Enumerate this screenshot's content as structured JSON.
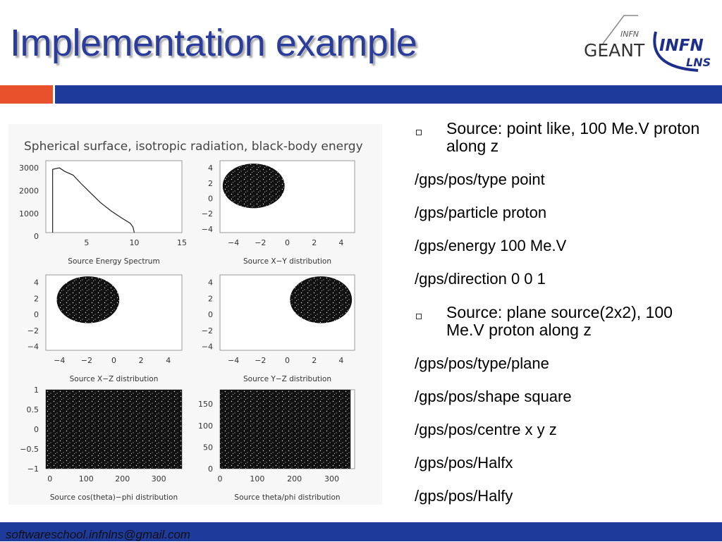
{
  "header": {
    "title": "Implementation example"
  },
  "logos": {
    "infn_small": "INFN",
    "geant": "GEANT",
    "infn": "INFN",
    "lns": "LNS"
  },
  "figure": {
    "title": "Spherical surface, isotropic radiation, black-body energy",
    "panels": [
      {
        "caption": "Source Energy Spectrum",
        "yticks": [
          "3000",
          "2000",
          "1000",
          "0"
        ],
        "xticks": [
          "5",
          "10",
          "15"
        ]
      },
      {
        "caption": "Source X−Y distribution",
        "yticks": [
          "4",
          "2",
          "0",
          "−2",
          "−4"
        ],
        "xticks": [
          "−4",
          "−2",
          "0",
          "2",
          "4"
        ]
      },
      {
        "caption": "Source X−Z distribution",
        "yticks": [
          "4",
          "2",
          "0",
          "−2",
          "−4"
        ],
        "xticks": [
          "−4",
          "−2",
          "0",
          "2",
          "4"
        ]
      },
      {
        "caption": "Source Y−Z distribution",
        "yticks": [
          "4",
          "2",
          "0",
          "−2",
          "−4"
        ],
        "xticks": [
          "−4",
          "−2",
          "0",
          "2",
          "4"
        ]
      },
      {
        "caption": "Source cos(theta)−phi distribution",
        "yticks": [
          "1",
          "0.5",
          "0",
          "−0.5",
          "−1"
        ],
        "xticks": [
          "0",
          "100",
          "200",
          "300"
        ]
      },
      {
        "caption": "Source theta/phi distribution",
        "yticks": [
          "150",
          "100",
          "50",
          "0"
        ],
        "xticks": [
          "0",
          "100",
          "200",
          "300"
        ]
      }
    ]
  },
  "content": {
    "items": [
      {
        "bullet": true,
        "text": "Source: point like, 100 Me.V proton along z"
      },
      {
        "text": "/gps/pos/type point"
      },
      {
        "text": "/gps/particle proton"
      },
      {
        "text": "/gps/energy 100 Me.V"
      },
      {
        "text": "/gps/direction 0 0 1"
      },
      {
        "bullet": true,
        "text": "Source: plane source(2x2), 100 Me.V proton along z"
      },
      {
        "text": "/gps/pos/type/plane"
      },
      {
        "text": "/gps/pos/shape square"
      },
      {
        "text": "/gps/pos/centre x y z"
      },
      {
        "text": "/gps/pos/Halfx"
      },
      {
        "text": "/gps/pos/Halfy"
      }
    ]
  },
  "footer": {
    "email": "softwareschool.infnlns@gmail.com"
  }
}
